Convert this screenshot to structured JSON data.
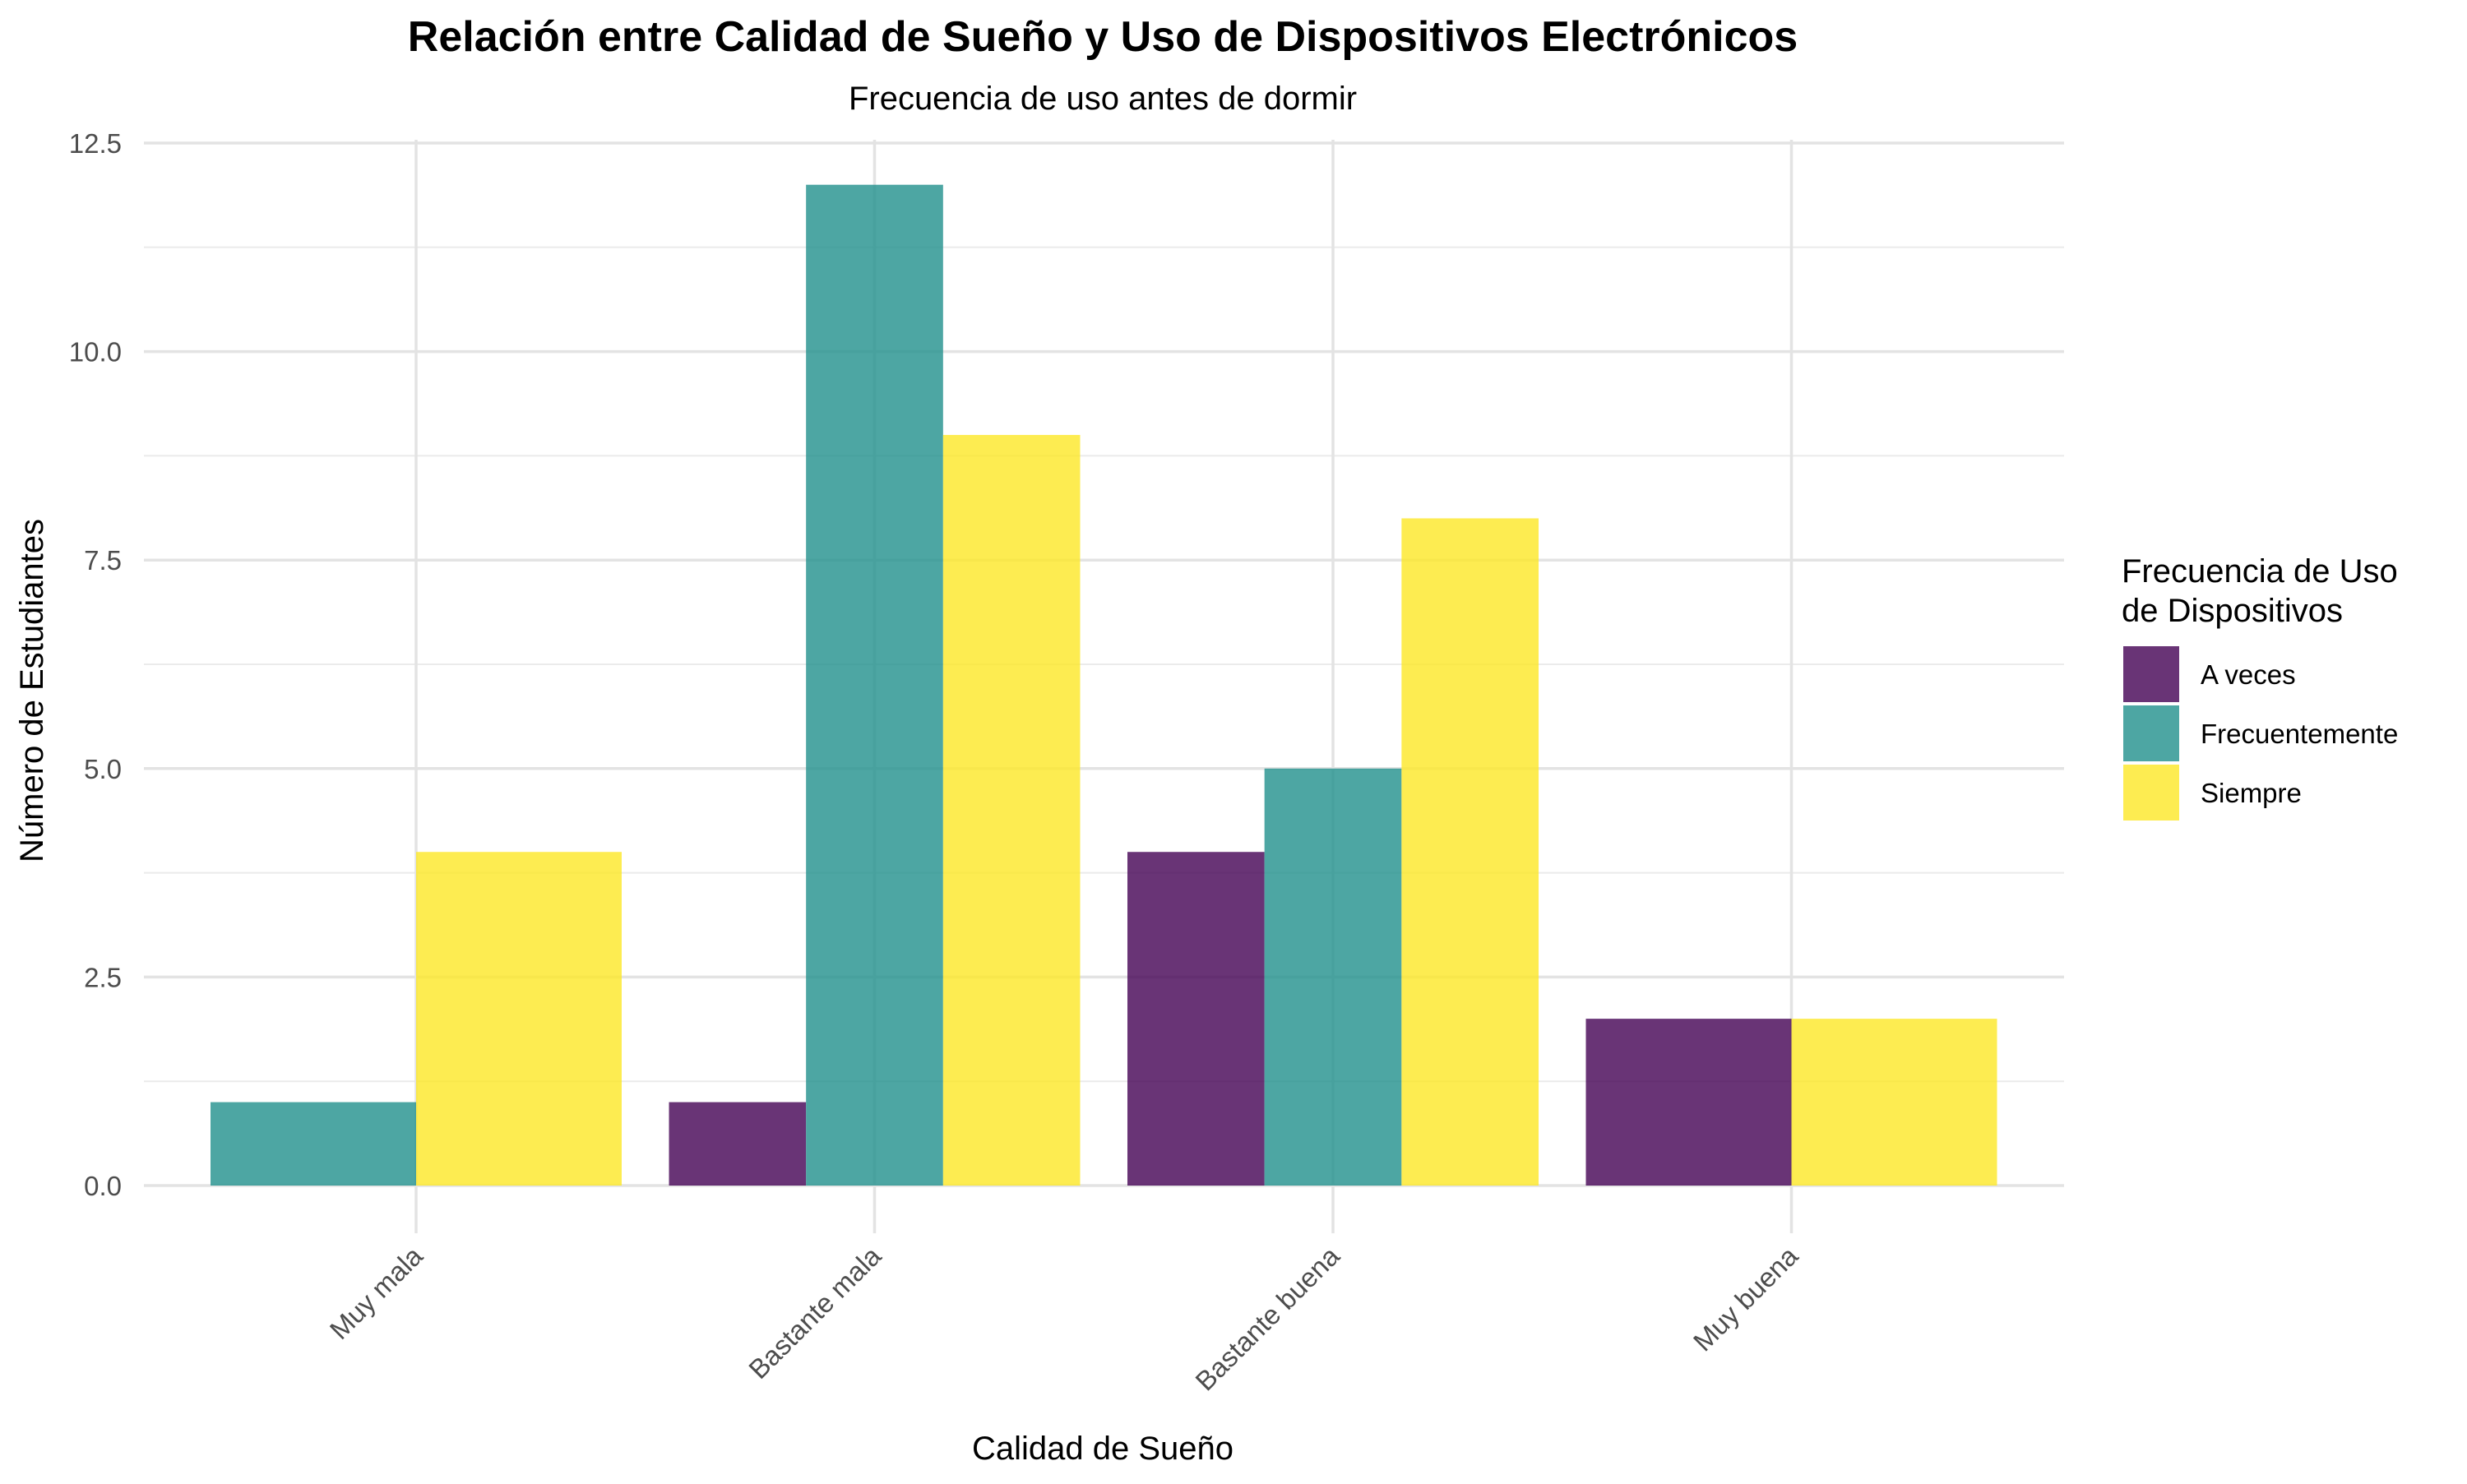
{
  "chart_data": {
    "type": "bar",
    "title": "Relación entre Calidad de Sueño y Uso de Dispositivos Electrónicos",
    "subtitle": "Frecuencia de uso antes de dormir",
    "xlabel": "Calidad de Sueño",
    "ylabel": "Número de Estudiantes",
    "categories": [
      "Muy mala",
      "Bastante mala",
      "Bastante buena",
      "Muy buena"
    ],
    "ylim": [
      0,
      12.5
    ],
    "yticks": [
      0,
      2.5,
      5,
      7.5,
      10,
      12.5
    ],
    "ytick_labels": [
      "0.0",
      "2.5",
      "5.0",
      "7.5",
      "10.0",
      "12.5"
    ],
    "grid": true,
    "legend": {
      "title_line1": "Frecuencia de Uso",
      "title_line2": "de Dispositivos",
      "position": "right"
    },
    "series": [
      {
        "name": "A veces",
        "color": "#440154",
        "values": [
          null,
          1,
          4,
          2
        ]
      },
      {
        "name": "Frecuentemente",
        "color": "#21908C",
        "values": [
          1,
          12,
          5,
          null
        ]
      },
      {
        "name": "Siempre",
        "color": "#FDE725",
        "values": [
          4,
          9,
          8,
          2
        ]
      }
    ]
  }
}
